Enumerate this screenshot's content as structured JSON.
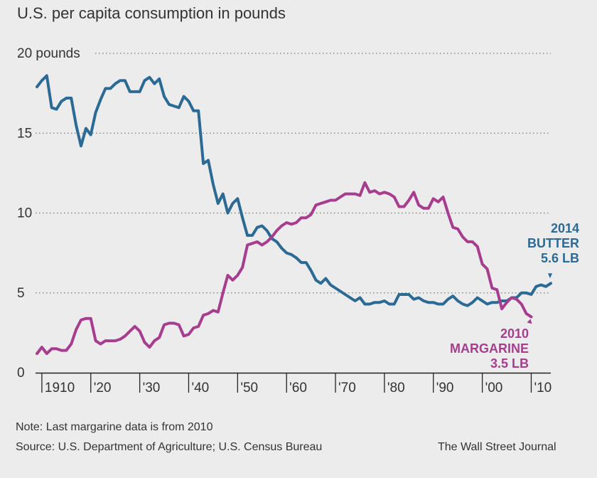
{
  "title": "U.S. per capita consumption in pounds",
  "notes": {
    "note": "Note: Last margarine data is from 2010",
    "source": "Source: U.S. Department of Agriculture; U.S. Census Bureau",
    "publisher": "The Wall Street Journal"
  },
  "chart_data": {
    "type": "line",
    "xlim": [
      1909,
      2014
    ],
    "ylim": [
      0,
      20
    ],
    "y_ticks": [
      {
        "value": 20,
        "label": "20 pounds"
      },
      {
        "value": 15,
        "label": "15"
      },
      {
        "value": 10,
        "label": "10"
      },
      {
        "value": 5,
        "label": "5"
      },
      {
        "value": 0,
        "label": "0"
      }
    ],
    "x_ticks": [
      {
        "value": 1910,
        "label": "1910"
      },
      {
        "value": 1920,
        "label": "'20"
      },
      {
        "value": 1930,
        "label": "'30"
      },
      {
        "value": 1940,
        "label": "'40"
      },
      {
        "value": 1950,
        "label": "'50"
      },
      {
        "value": 1960,
        "label": "'60"
      },
      {
        "value": 1970,
        "label": "'70"
      },
      {
        "value": 1980,
        "label": "'80"
      },
      {
        "value": 1990,
        "label": "'90"
      },
      {
        "value": 2000,
        "label": "'00"
      },
      {
        "value": 2010,
        "label": "'10"
      }
    ],
    "grid": "horizontal dotted",
    "colors": {
      "butter": "#2b6a94",
      "margarine": "#a63d8e"
    },
    "series": [
      {
        "key": "butter",
        "annotation": [
          "2014",
          "BUTTER",
          "5.6 LB"
        ],
        "x": [
          1909,
          1910,
          1911,
          1912,
          1913,
          1914,
          1915,
          1916,
          1917,
          1918,
          1919,
          1920,
          1921,
          1922,
          1923,
          1924,
          1925,
          1926,
          1927,
          1928,
          1929,
          1930,
          1931,
          1932,
          1933,
          1934,
          1935,
          1936,
          1937,
          1938,
          1939,
          1940,
          1941,
          1942,
          1943,
          1944,
          1945,
          1946,
          1947,
          1948,
          1949,
          1950,
          1951,
          1952,
          1953,
          1954,
          1955,
          1956,
          1957,
          1958,
          1959,
          1960,
          1961,
          1962,
          1963,
          1964,
          1965,
          1966,
          1967,
          1968,
          1969,
          1970,
          1971,
          1972,
          1973,
          1974,
          1975,
          1976,
          1977,
          1978,
          1979,
          1980,
          1981,
          1982,
          1983,
          1984,
          1985,
          1986,
          1987,
          1988,
          1989,
          1990,
          1991,
          1992,
          1993,
          1994,
          1995,
          1996,
          1997,
          1998,
          1999,
          2000,
          2001,
          2002,
          2003,
          2004,
          2005,
          2006,
          2007,
          2008,
          2009,
          2010,
          2011,
          2012,
          2013,
          2014
        ],
        "values": [
          17.9,
          18.3,
          18.6,
          16.6,
          16.5,
          17.0,
          17.2,
          17.2,
          15.5,
          14.2,
          15.3,
          14.9,
          16.3,
          17.1,
          17.8,
          17.8,
          18.1,
          18.3,
          18.3,
          17.6,
          17.6,
          17.6,
          18.3,
          18.5,
          18.1,
          18.4,
          17.3,
          16.8,
          16.7,
          16.6,
          17.3,
          17.0,
          16.4,
          16.4,
          13.1,
          13.3,
          11.8,
          10.6,
          11.2,
          10.0,
          10.6,
          10.9,
          9.7,
          8.6,
          8.6,
          9.1,
          9.2,
          8.9,
          8.4,
          8.2,
          7.8,
          7.5,
          7.4,
          7.2,
          6.9,
          6.9,
          6.4,
          5.8,
          5.6,
          5.9,
          5.5,
          5.3,
          5.1,
          4.9,
          4.7,
          4.5,
          4.7,
          4.3,
          4.3,
          4.4,
          4.4,
          4.5,
          4.3,
          4.3,
          4.9,
          4.9,
          4.9,
          4.6,
          4.7,
          4.5,
          4.4,
          4.4,
          4.3,
          4.3,
          4.6,
          4.8,
          4.5,
          4.3,
          4.2,
          4.4,
          4.7,
          4.5,
          4.3,
          4.4,
          4.4,
          4.5,
          4.5,
          4.7,
          4.7,
          5.0,
          5.0,
          4.9,
          5.4,
          5.5,
          5.4,
          5.6
        ]
      },
      {
        "key": "margarine",
        "annotation": [
          "2010",
          "MARGARINE",
          "3.5 LB"
        ],
        "x": [
          1909,
          1910,
          1911,
          1912,
          1913,
          1914,
          1915,
          1916,
          1917,
          1918,
          1919,
          1920,
          1921,
          1922,
          1923,
          1924,
          1925,
          1926,
          1927,
          1928,
          1929,
          1930,
          1931,
          1932,
          1933,
          1934,
          1935,
          1936,
          1937,
          1938,
          1939,
          1940,
          1941,
          1942,
          1943,
          1944,
          1945,
          1946,
          1947,
          1948,
          1949,
          1950,
          1951,
          1952,
          1953,
          1954,
          1955,
          1956,
          1957,
          1958,
          1959,
          1960,
          1961,
          1962,
          1963,
          1964,
          1965,
          1966,
          1967,
          1968,
          1969,
          1970,
          1971,
          1972,
          1973,
          1974,
          1975,
          1976,
          1977,
          1978,
          1979,
          1980,
          1981,
          1982,
          1983,
          1984,
          1985,
          1986,
          1987,
          1988,
          1989,
          1990,
          1991,
          1992,
          1993,
          1994,
          1995,
          1996,
          1997,
          1998,
          1999,
          2000,
          2001,
          2002,
          2003,
          2004,
          2005,
          2006,
          2007,
          2008,
          2009,
          2010
        ],
        "values": [
          1.2,
          1.6,
          1.2,
          1.5,
          1.5,
          1.4,
          1.4,
          1.8,
          2.7,
          3.3,
          3.4,
          3.4,
          2.0,
          1.8,
          2.0,
          2.0,
          2.0,
          2.1,
          2.3,
          2.6,
          2.9,
          2.6,
          1.9,
          1.6,
          2.0,
          2.2,
          3.0,
          3.1,
          3.1,
          3.0,
          2.3,
          2.4,
          2.8,
          2.9,
          3.6,
          3.7,
          3.9,
          3.8,
          5.0,
          6.1,
          5.8,
          6.1,
          6.6,
          8.0,
          8.1,
          8.2,
          8.0,
          8.2,
          8.5,
          8.9,
          9.2,
          9.4,
          9.3,
          9.4,
          9.7,
          9.7,
          9.9,
          10.5,
          10.6,
          10.7,
          10.8,
          10.8,
          11.0,
          11.2,
          11.2,
          11.2,
          11.1,
          11.9,
          11.3,
          11.4,
          11.2,
          11.3,
          11.2,
          11.0,
          10.4,
          10.4,
          10.8,
          11.3,
          10.5,
          10.3,
          10.3,
          10.9,
          10.7,
          11.0,
          10.0,
          9.1,
          9.0,
          8.5,
          8.2,
          8.2,
          7.9,
          6.8,
          6.5,
          5.3,
          5.2,
          4.0,
          4.4,
          4.7,
          4.6,
          4.3,
          3.7,
          3.5
        ]
      }
    ]
  }
}
